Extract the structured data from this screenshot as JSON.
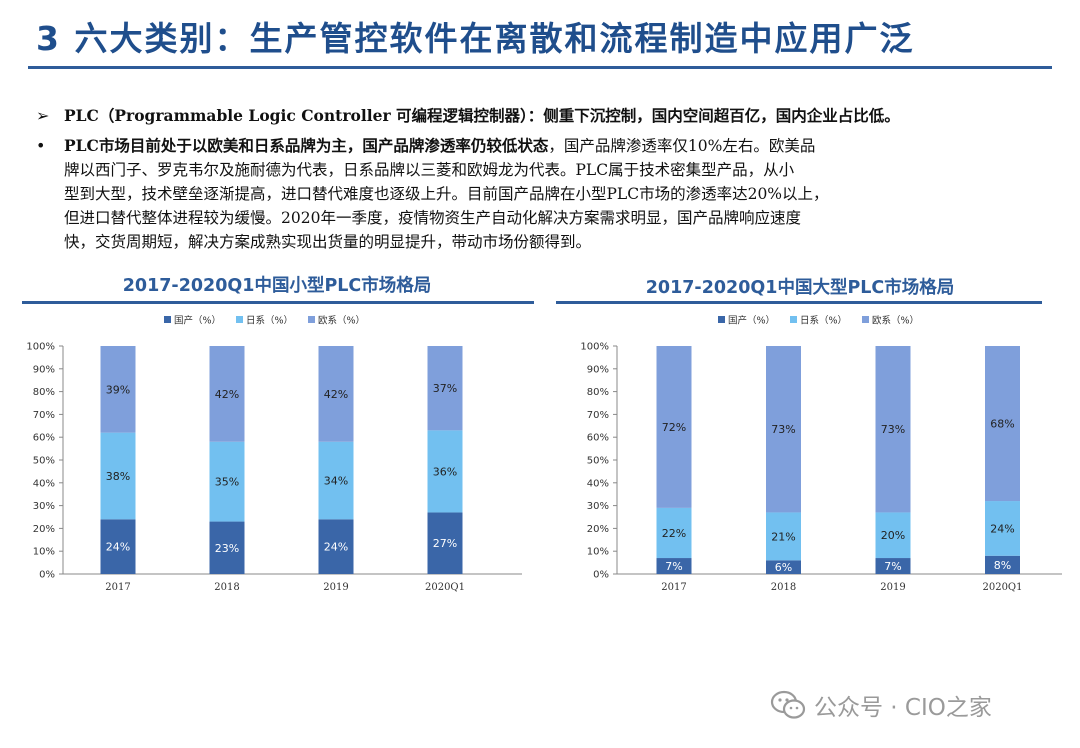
{
  "title": "3 六大类别：生产管控软件在离散和流程制造中应用广泛",
  "bullets": {
    "b1_marker": "➢",
    "b1_text": "PLC（Programmable Logic Controller 可编程逻辑控制器）：侧重下沉控制，国内空间超百亿，国内企业占比低。",
    "b2_marker": "•",
    "b2_bold": "PLC市场目前处于以欧美和日系品牌为主，国产品牌渗透率仍较低状态",
    "b2_line1_rest": "，国产品牌渗透率仅10%左右。欧美品",
    "b2_line2": "牌以西门子、罗克韦尔及施耐德为代表，日系品牌以三菱和欧姆龙为代表。PLC属于技术密集型产品，从小",
    "b2_line3": "型到大型，技术壁垒逐渐提高，进口替代难度也逐级上升。目前国产品牌在小型PLC市场的渗透率达20%以上，",
    "b2_line4": "但进口替代整体进程较为缓慢。2020年一季度，疫情物资生产自动化解决方案需求明显，国产品牌响应速度",
    "b2_line5": "快，交货周期短，解决方案成熟实现出货量的明显提升，带动市场份额得到。"
  },
  "colors": {
    "domestic": "#3a66a8",
    "japan": "#72c0f0",
    "europe": "#7f9fdb",
    "rule": "#2e5c9a"
  },
  "watermark": "公众号 · CIO之家",
  "chart_data": [
    {
      "type": "bar",
      "stacked": true,
      "title": "2017-2020Q1中国小型PLC市场格局",
      "categories": [
        "2017",
        "2018",
        "2019",
        "2020Q1"
      ],
      "series": [
        {
          "name": "国产（%）",
          "values": [
            24,
            23,
            24,
            27
          ]
        },
        {
          "name": "日系（%）",
          "values": [
            38,
            35,
            34,
            36
          ]
        },
        {
          "name": "欧系（%）",
          "values": [
            39,
            42,
            42,
            37
          ]
        }
      ],
      "ylim": [
        0,
        100
      ],
      "yticks": [
        "0%",
        "10%",
        "20%",
        "30%",
        "40%",
        "50%",
        "60%",
        "70%",
        "80%",
        "90%",
        "100%"
      ],
      "legend": "top",
      "grid": false
    },
    {
      "type": "bar",
      "stacked": true,
      "title": "2017-2020Q1中国大型PLC市场格局",
      "categories": [
        "2017",
        "2018",
        "2019",
        "2020Q1"
      ],
      "series": [
        {
          "name": "国产（%）",
          "values": [
            7,
            6,
            7,
            8
          ]
        },
        {
          "name": "日系（%）",
          "values": [
            22,
            21,
            20,
            24
          ]
        },
        {
          "name": "欧系（%）",
          "values": [
            72,
            73,
            73,
            68
          ]
        }
      ],
      "ylim": [
        0,
        100
      ],
      "yticks": [
        "0%",
        "10%",
        "20%",
        "30%",
        "40%",
        "50%",
        "60%",
        "70%",
        "80%",
        "90%",
        "100%"
      ],
      "legend": "top",
      "grid": false
    }
  ]
}
